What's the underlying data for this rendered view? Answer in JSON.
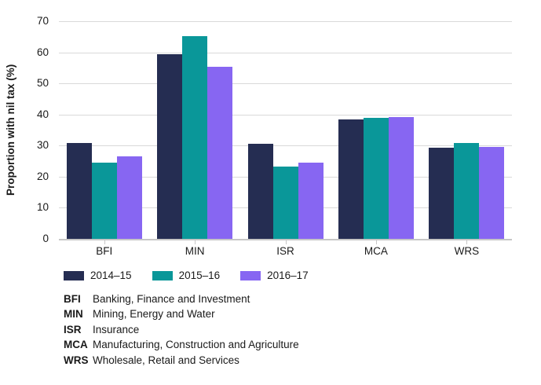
{
  "chart_data": {
    "type": "bar",
    "title": "",
    "ylabel": "Proportion with nil tax (%)",
    "xlabel": "",
    "categories": [
      "BFI",
      "MIN",
      "ISR",
      "MCA",
      "WRS"
    ],
    "series": [
      {
        "name": "2014–15",
        "color": "#252d52",
        "values": [
          30.9,
          59.4,
          30.5,
          38.4,
          29.3
        ]
      },
      {
        "name": "2015–16",
        "color": "#0a9799",
        "values": [
          24.4,
          65.1,
          23.3,
          38.9,
          30.9
        ]
      },
      {
        "name": "2016–17",
        "color": "#8766f2",
        "values": [
          26.5,
          55.4,
          24.4,
          39.1,
          29.5
        ]
      }
    ],
    "ylim": [
      0,
      70
    ],
    "yticks": [
      0,
      10,
      20,
      30,
      40,
      50,
      60,
      70
    ],
    "grid": true,
    "gridline_color": "#d9d9d9",
    "axis_color": "#c7c7c7",
    "legend_position": "bottom"
  },
  "footnotes": [
    {
      "abbr": "BFI",
      "desc": "Banking, Finance and Investment"
    },
    {
      "abbr": "MIN",
      "desc": "Mining, Energy and Water"
    },
    {
      "abbr": "ISR",
      "desc": "Insurance"
    },
    {
      "abbr": "MCA",
      "desc": "Manufacturing, Construction and Agriculture"
    },
    {
      "abbr": "WRS",
      "desc": "Wholesale, Retail and Services"
    }
  ]
}
